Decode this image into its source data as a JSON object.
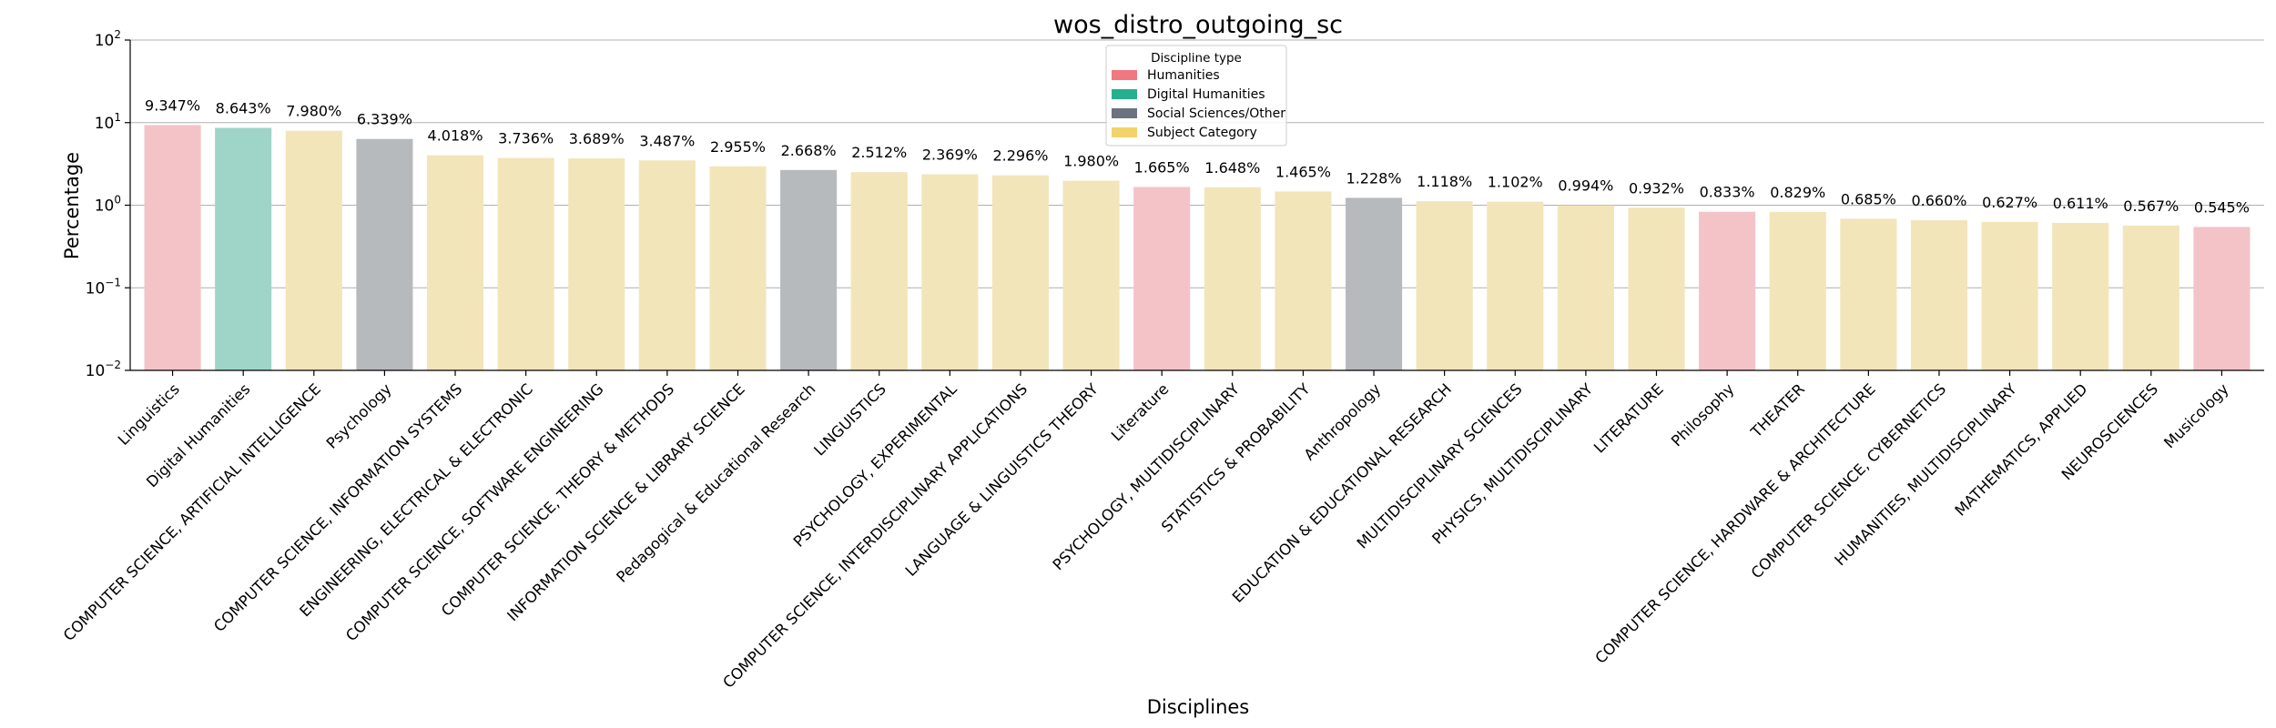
{
  "chart_data": {
    "type": "bar",
    "title": "wos_distro_outgoing_sc",
    "xlabel": "Disciplines",
    "ylabel": "Percentage",
    "yscale": "log",
    "ylim": [
      0.01,
      100
    ],
    "yticks": [
      {
        "value": 0.01,
        "base": "10",
        "exp": "−2"
      },
      {
        "value": 0.1,
        "base": "10",
        "exp": "−1"
      },
      {
        "value": 1,
        "base": "10",
        "exp": "0"
      },
      {
        "value": 10,
        "base": "10",
        "exp": "1"
      },
      {
        "value": 100,
        "base": "10",
        "exp": "2"
      }
    ],
    "grid": "y-major",
    "legend": {
      "title": "Discipline type",
      "placement": "top-center",
      "entries": [
        {
          "key": "humanities",
          "label": "Humanities",
          "color": "#f07880"
        },
        {
          "key": "digital",
          "label": "Digital Humanities",
          "color": "#26b08e"
        },
        {
          "key": "social",
          "label": "Social Sciences/Other",
          "color": "#6b7280"
        },
        {
          "key": "subject",
          "label": "Subject Category",
          "color": "#f2d26b"
        }
      ]
    },
    "bar_colors": {
      "humanities": "#f3c3c8",
      "digital": "#9fd5c8",
      "social": "#b7babd",
      "subject": "#f2e5b9"
    },
    "bars": [
      {
        "category": "Linguistics",
        "value": 9.347,
        "label": "9.347%",
        "type": "humanities"
      },
      {
        "category": "Digital Humanities",
        "value": 8.643,
        "label": "8.643%",
        "type": "digital"
      },
      {
        "category": "COMPUTER SCIENCE, ARTIFICIAL INTELLIGENCE",
        "value": 7.98,
        "label": "7.980%",
        "type": "subject"
      },
      {
        "category": "Psychology",
        "value": 6.339,
        "label": "6.339%",
        "type": "social"
      },
      {
        "category": "COMPUTER SCIENCE, INFORMATION SYSTEMS",
        "value": 4.018,
        "label": "4.018%",
        "type": "subject"
      },
      {
        "category": "ENGINEERING, ELECTRICAL & ELECTRONIC",
        "value": 3.736,
        "label": "3.736%",
        "type": "subject"
      },
      {
        "category": "COMPUTER SCIENCE, SOFTWARE ENGINEERING",
        "value": 3.689,
        "label": "3.689%",
        "type": "subject"
      },
      {
        "category": "COMPUTER SCIENCE, THEORY & METHODS",
        "value": 3.487,
        "label": "3.487%",
        "type": "subject"
      },
      {
        "category": "INFORMATION SCIENCE & LIBRARY SCIENCE",
        "value": 2.955,
        "label": "2.955%",
        "type": "subject"
      },
      {
        "category": "Pedagogical & Educational Research",
        "value": 2.668,
        "label": "2.668%",
        "type": "social"
      },
      {
        "category": "LINGUISTICS",
        "value": 2.512,
        "label": "2.512%",
        "type": "subject"
      },
      {
        "category": "PSYCHOLOGY, EXPERIMENTAL",
        "value": 2.369,
        "label": "2.369%",
        "type": "subject"
      },
      {
        "category": "COMPUTER SCIENCE, INTERDISCIPLINARY APPLICATIONS",
        "value": 2.296,
        "label": "2.296%",
        "type": "subject"
      },
      {
        "category": "LANGUAGE & LINGUISTICS THEORY",
        "value": 1.98,
        "label": "1.980%",
        "type": "subject"
      },
      {
        "category": "Literature",
        "value": 1.665,
        "label": "1.665%",
        "type": "humanities"
      },
      {
        "category": "PSYCHOLOGY, MULTIDISCIPLINARY",
        "value": 1.648,
        "label": "1.648%",
        "type": "subject"
      },
      {
        "category": "STATISTICS & PROBABILITY",
        "value": 1.465,
        "label": "1.465%",
        "type": "subject"
      },
      {
        "category": "Anthropology",
        "value": 1.228,
        "label": "1.228%",
        "type": "social"
      },
      {
        "category": "EDUCATION & EDUCATIONAL RESEARCH",
        "value": 1.118,
        "label": "1.118%",
        "type": "subject"
      },
      {
        "category": "MULTIDISCIPLINARY SCIENCES",
        "value": 1.102,
        "label": "1.102%",
        "type": "subject"
      },
      {
        "category": "PHYSICS, MULTIDISCIPLINARY",
        "value": 0.994,
        "label": "0.994%",
        "type": "subject"
      },
      {
        "category": "LITERATURE",
        "value": 0.932,
        "label": "0.932%",
        "type": "subject"
      },
      {
        "category": "Philosophy",
        "value": 0.833,
        "label": "0.833%",
        "type": "humanities"
      },
      {
        "category": "THEATER",
        "value": 0.829,
        "label": "0.829%",
        "type": "subject"
      },
      {
        "category": "COMPUTER SCIENCE, HARDWARE & ARCHITECTURE",
        "value": 0.685,
        "label": "0.685%",
        "type": "subject"
      },
      {
        "category": "COMPUTER SCIENCE, CYBERNETICS",
        "value": 0.66,
        "label": "0.660%",
        "type": "subject"
      },
      {
        "category": "HUMANITIES, MULTIDISCIPLINARY",
        "value": 0.627,
        "label": "0.627%",
        "type": "subject"
      },
      {
        "category": "MATHEMATICS, APPLIED",
        "value": 0.611,
        "label": "0.611%",
        "type": "subject"
      },
      {
        "category": "NEUROSCIENCES",
        "value": 0.567,
        "label": "0.567%",
        "type": "subject"
      },
      {
        "category": "Musicology",
        "value": 0.545,
        "label": "0.545%",
        "type": "humanities"
      }
    ]
  }
}
